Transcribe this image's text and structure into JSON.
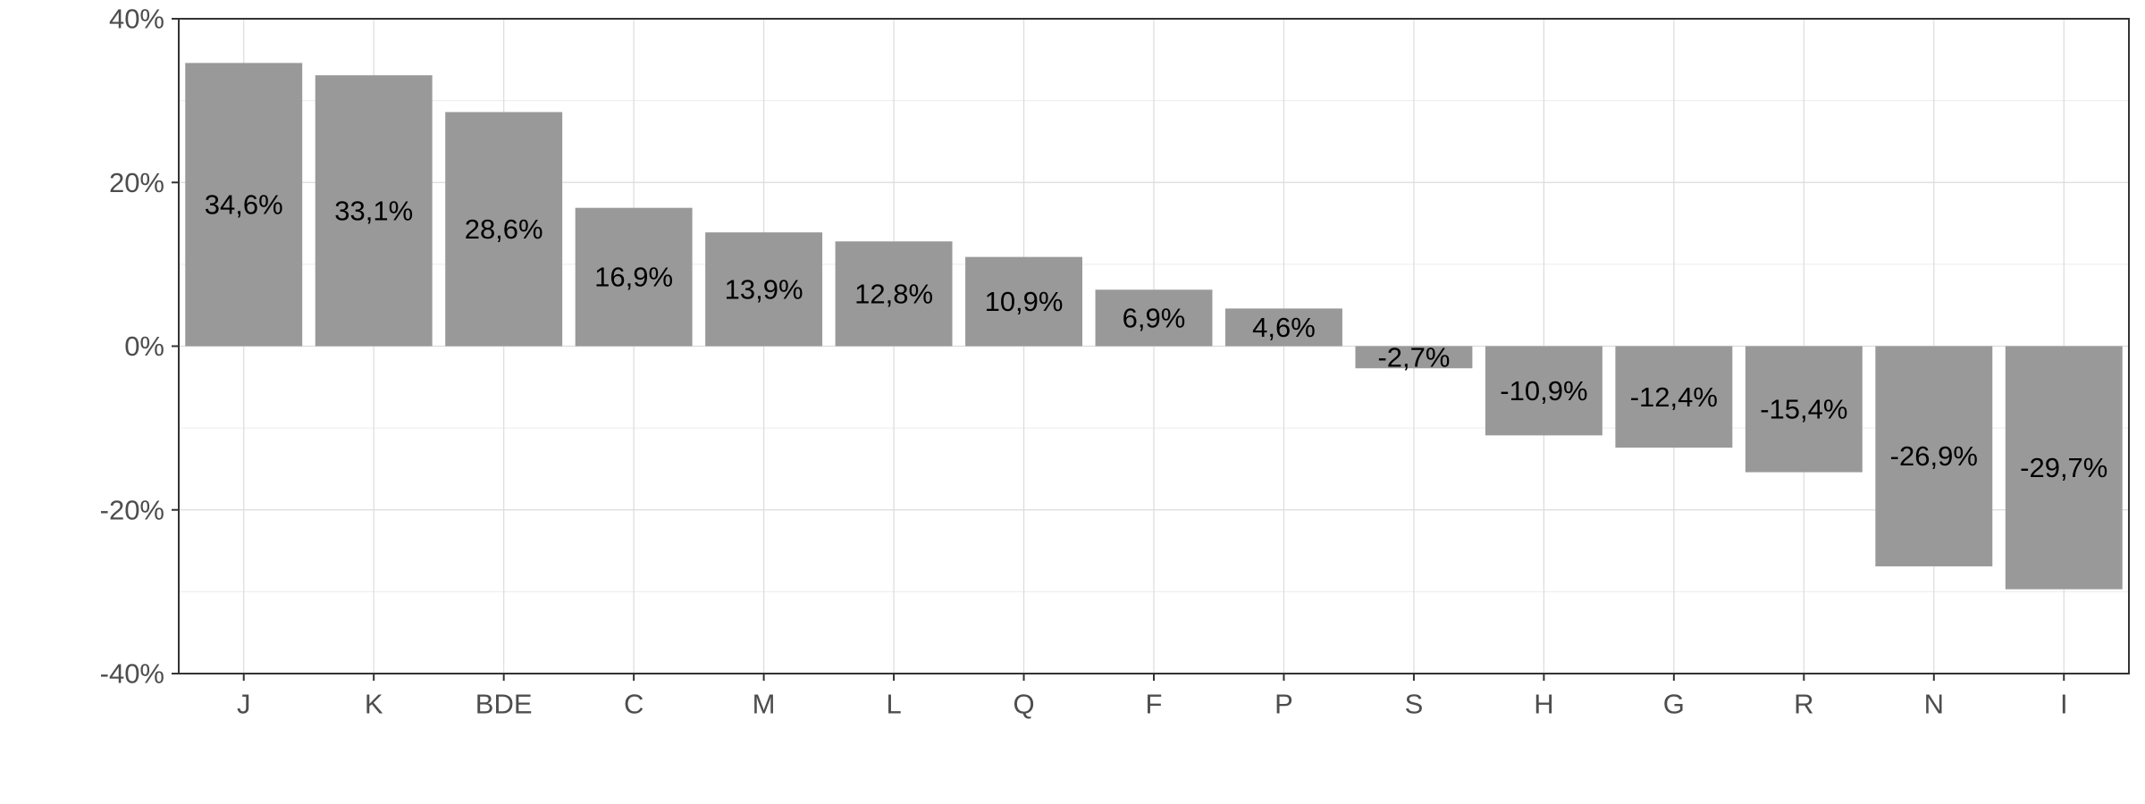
{
  "chart_data": {
    "type": "bar",
    "categories": [
      "J",
      "K",
      "BDE",
      "C",
      "M",
      "L",
      "Q",
      "F",
      "P",
      "S",
      "H",
      "G",
      "R",
      "N",
      "I"
    ],
    "values": [
      34.6,
      33.1,
      28.6,
      16.9,
      13.9,
      12.8,
      10.9,
      6.9,
      4.6,
      -2.7,
      -10.9,
      -12.4,
      -15.4,
      -26.9,
      -29.7
    ],
    "data_labels": [
      "34,6%",
      "33,1%",
      "28,6%",
      "16,9%",
      "13,9%",
      "12,8%",
      "10,9%",
      "6,9%",
      "4,6%",
      "-2,7%",
      "-10,9%",
      "-12,4%",
      "-15,4%",
      "-26,9%",
      "-29,7%"
    ],
    "y_ticks": [
      40,
      20,
      0,
      -20,
      -40
    ],
    "y_tick_labels": [
      "40%",
      "20%",
      "0%",
      "-20%",
      "-40%"
    ],
    "ylim": [
      -40,
      40
    ],
    "title": "",
    "xlabel": "",
    "ylabel": "",
    "grid": true,
    "legend": "none",
    "colors": {
      "bar": "#999999",
      "grid_major": "#dcdcdc",
      "grid_minor": "#ececec",
      "panel_border": "#333333",
      "tick_text": "#4d4d4d",
      "label_text": "#000000"
    }
  }
}
